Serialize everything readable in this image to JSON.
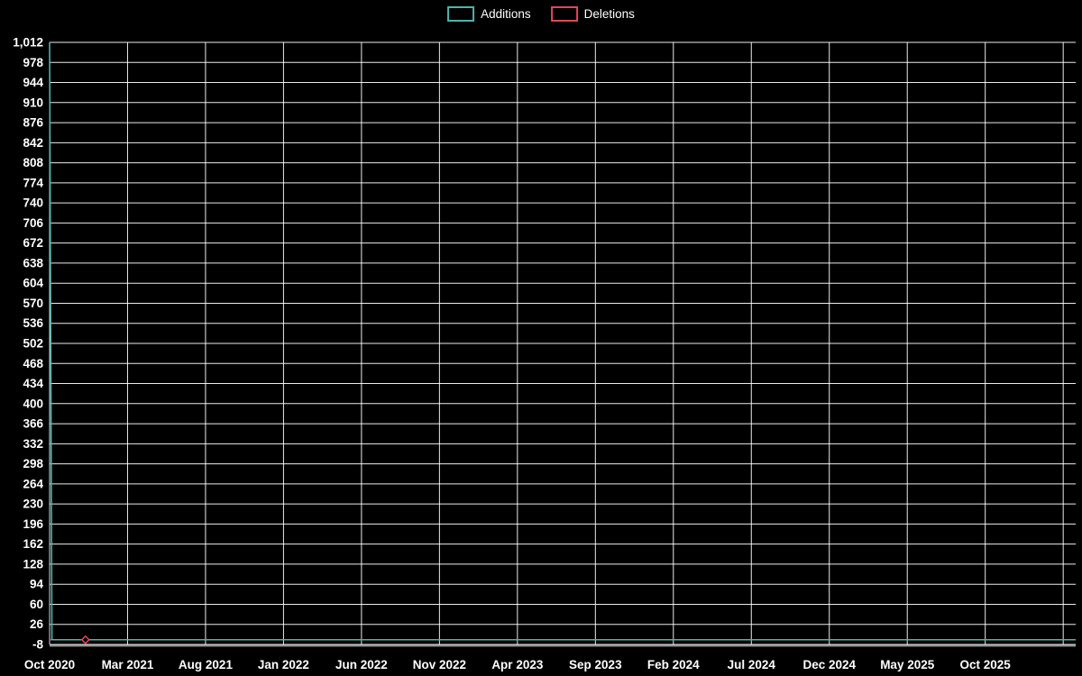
{
  "legend": {
    "items": [
      {
        "label": "Additions",
        "color": "#4fb3ab"
      },
      {
        "label": "Deletions",
        "color": "#e0485a"
      }
    ]
  },
  "chart_data": {
    "type": "line",
    "title": "",
    "xlabel": "",
    "ylabel": "",
    "background": "#000000",
    "grid": true,
    "grid_color": "#ffffff",
    "text_color": "#ffffff",
    "axis_color": "#8a8a8a",
    "legend_position": "top-center",
    "ylim": [
      -8,
      1012
    ],
    "xlim_months": [
      0,
      65.8
    ],
    "y_ticks": [
      -8,
      26,
      60,
      94,
      128,
      162,
      196,
      230,
      264,
      298,
      332,
      366,
      400,
      434,
      468,
      502,
      536,
      570,
      604,
      638,
      672,
      706,
      740,
      774,
      808,
      842,
      876,
      910,
      944,
      978,
      1012
    ],
    "x_tick_labels": [
      "Oct 2020",
      "Mar 2021",
      "Aug 2021",
      "Jan 2022",
      "Jun 2022",
      "Nov 2022",
      "Apr 2023",
      "Sep 2023",
      "Feb 2024",
      "Jul 2024",
      "Dec 2024",
      "May 2025",
      "Oct 2025"
    ],
    "x_tick_months": [
      0,
      5,
      10,
      15,
      20,
      25,
      30,
      35,
      40,
      45,
      50,
      55,
      60
    ],
    "extra_gridline_months": [
      65
    ],
    "series": [
      {
        "name": "Additions",
        "color": "#4fb3ab",
        "points": [
          [
            0,
            1012
          ],
          [
            0.15,
            0
          ],
          [
            65.8,
            0
          ]
        ],
        "markers": []
      },
      {
        "name": "Deletions",
        "color": "#e0485a",
        "points": [
          [
            0,
            0
          ],
          [
            65.8,
            0
          ]
        ],
        "markers": [
          [
            2.3,
            0
          ]
        ]
      }
    ]
  }
}
